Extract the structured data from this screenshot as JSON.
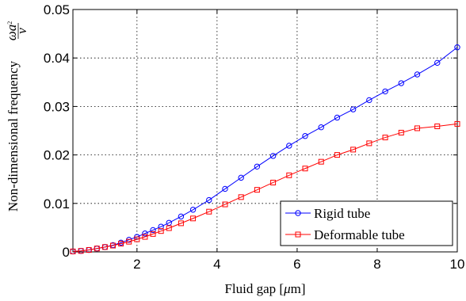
{
  "chart_data": {
    "type": "line",
    "title": "",
    "xlabel_text": "Fluid gap [",
    "xlabel_mu": "μ",
    "xlabel_unit": "m]",
    "ylabel_text": "Non-dimensional frequency",
    "ylabel_frac_num_a": "ωa",
    "ylabel_frac_num_sup": "2",
    "ylabel_frac_den": "ν",
    "xlim": [
      0.4,
      10
    ],
    "ylim": [
      0,
      0.05
    ],
    "xticks": [
      2,
      4,
      6,
      8,
      10
    ],
    "yticks": [
      0,
      0.01,
      0.02,
      0.03,
      0.04,
      0.05
    ],
    "xtick_labels": [
      "2",
      "4",
      "6",
      "8",
      "10"
    ],
    "ytick_labels": [
      "0",
      "0.01",
      "0.02",
      "0.03",
      "0.04",
      "0.05"
    ],
    "grid": true,
    "legend_position": "bottom-right",
    "series": [
      {
        "name": "Rigid tube",
        "color": "#0000ff",
        "marker": "circle",
        "x": [
          0.4,
          0.6,
          0.8,
          1.0,
          1.2,
          1.4,
          1.6,
          1.8,
          2.0,
          2.2,
          2.4,
          2.6,
          2.8,
          3.1,
          3.4,
          3.8,
          4.2,
          4.6,
          5.0,
          5.4,
          5.8,
          6.2,
          6.6,
          7.0,
          7.4,
          7.8,
          8.2,
          8.6,
          9.0,
          9.5,
          10.0
        ],
        "y": [
          0.0001,
          0.0002,
          0.0004,
          0.0007,
          0.001,
          0.0014,
          0.0019,
          0.0025,
          0.0031,
          0.0038,
          0.0045,
          0.0052,
          0.006,
          0.0073,
          0.0087,
          0.0107,
          0.013,
          0.0153,
          0.0176,
          0.0198,
          0.0219,
          0.0239,
          0.0257,
          0.0277,
          0.0294,
          0.0313,
          0.0331,
          0.0348,
          0.0366,
          0.039,
          0.0422
        ]
      },
      {
        "name": "Deformable tube",
        "color": "#ff0000",
        "marker": "square",
        "x": [
          0.4,
          0.6,
          0.8,
          1.0,
          1.2,
          1.4,
          1.6,
          1.8,
          2.0,
          2.2,
          2.4,
          2.6,
          2.8,
          3.1,
          3.4,
          3.8,
          4.2,
          4.6,
          5.0,
          5.4,
          5.8,
          6.2,
          6.6,
          7.0,
          7.4,
          7.8,
          8.2,
          8.6,
          9.0,
          9.5,
          10.0
        ],
        "y": [
          0.0001,
          0.0002,
          0.0004,
          0.0007,
          0.001,
          0.0013,
          0.0017,
          0.0021,
          0.0026,
          0.0031,
          0.0037,
          0.0043,
          0.0049,
          0.0059,
          0.0069,
          0.0083,
          0.0098,
          0.0113,
          0.0128,
          0.0143,
          0.0158,
          0.0172,
          0.0186,
          0.02,
          0.0211,
          0.0224,
          0.0236,
          0.0246,
          0.0255,
          0.0259,
          0.0264
        ]
      }
    ]
  }
}
